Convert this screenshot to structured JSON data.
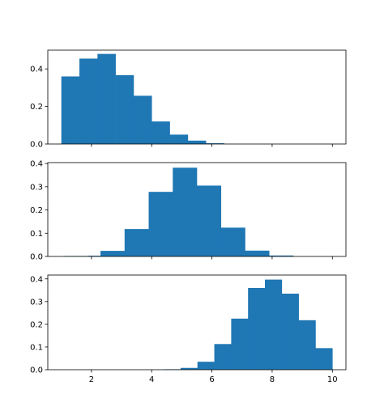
{
  "chart_data": [
    {
      "type": "bar",
      "name": "panel-1",
      "bin_width": 0.6,
      "bars": [
        {
          "x0": 1.0,
          "value": 0.36
        },
        {
          "x0": 1.6,
          "value": 0.455
        },
        {
          "x0": 2.2,
          "value": 0.48
        },
        {
          "x0": 2.8,
          "value": 0.367
        },
        {
          "x0": 3.4,
          "value": 0.257
        },
        {
          "x0": 4.0,
          "value": 0.12
        },
        {
          "x0": 4.6,
          "value": 0.05
        },
        {
          "x0": 5.2,
          "value": 0.018
        },
        {
          "x0": 5.8,
          "value": 0.004
        }
      ],
      "xlim": [
        0.55,
        10.45
      ],
      "ylim": [
        0,
        0.5
      ],
      "yticks": [
        0.0,
        0.2,
        0.4
      ],
      "ytick_labels": [
        "0.0",
        "0.2",
        "0.4"
      ],
      "xticks": [
        2,
        4,
        6,
        8,
        10
      ],
      "xtick_labels": [],
      "color": "#1f77b4"
    },
    {
      "type": "bar",
      "name": "panel-2",
      "bin_width": 0.8,
      "bars": [
        {
          "x0": 1.1,
          "value": 0.002
        },
        {
          "x0": 1.9,
          "value": 0.003
        },
        {
          "x0": 2.3,
          "value": 0.024
        },
        {
          "x0": 3.1,
          "value": 0.118
        },
        {
          "x0": 3.9,
          "value": 0.278
        },
        {
          "x0": 4.7,
          "value": 0.382
        },
        {
          "x0": 5.5,
          "value": 0.305
        },
        {
          "x0": 6.3,
          "value": 0.124
        },
        {
          "x0": 7.1,
          "value": 0.025
        },
        {
          "x0": 7.9,
          "value": 0.004
        }
      ],
      "xlim": [
        0.55,
        10.45
      ],
      "ylim": [
        0,
        0.404
      ],
      "yticks": [
        0.0,
        0.1,
        0.2,
        0.3,
        0.4
      ],
      "ytick_labels": [
        "0.0",
        "0.1",
        "0.2",
        "0.3",
        "0.4"
      ],
      "xticks": [
        2,
        4,
        6,
        8,
        10
      ],
      "xtick_labels": [],
      "color": "#1f77b4"
    },
    {
      "type": "bar",
      "name": "panel-3",
      "bin_width": 0.56,
      "bars": [
        {
          "x0": 4.4,
          "value": 0.002
        },
        {
          "x0": 4.96,
          "value": 0.008
        },
        {
          "x0": 5.52,
          "value": 0.035
        },
        {
          "x0": 6.08,
          "value": 0.113
        },
        {
          "x0": 6.64,
          "value": 0.225
        },
        {
          "x0": 7.2,
          "value": 0.36
        },
        {
          "x0": 7.76,
          "value": 0.397
        },
        {
          "x0": 8.32,
          "value": 0.335
        },
        {
          "x0": 8.88,
          "value": 0.218
        },
        {
          "x0": 9.44,
          "value": 0.095
        }
      ],
      "xlim": [
        0.55,
        10.45
      ],
      "ylim": [
        0,
        0.417
      ],
      "yticks": [
        0.0,
        0.1,
        0.2,
        0.3,
        0.4
      ],
      "ytick_labels": [
        "0.0",
        "0.1",
        "0.2",
        "0.3",
        "0.4"
      ],
      "xticks": [
        2,
        4,
        6,
        8,
        10
      ],
      "xtick_labels": [
        "2",
        "4",
        "6",
        "8",
        "10"
      ],
      "color": "#1f77b4"
    }
  ]
}
